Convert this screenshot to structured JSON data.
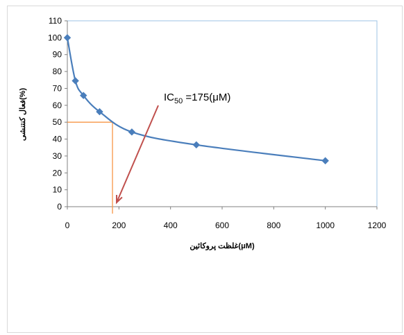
{
  "chart_data": {
    "type": "scatter",
    "title": "",
    "xlabel": "غلظت پروکائین(μM)",
    "ylabel": "فعال کنتنشی(%)",
    "xlim": [
      0,
      1200
    ],
    "ylim": [
      0,
      110
    ],
    "x_ticks": [
      "0",
      "200",
      "400",
      "600",
      "800",
      "1000",
      "1200"
    ],
    "y_ticks": [
      "0",
      "10",
      "20",
      "30",
      "40",
      "50",
      "60",
      "70",
      "80",
      "90",
      "100",
      "110"
    ],
    "grid": false,
    "series": [
      {
        "x": [
          0,
          31.25,
          62.5,
          125,
          250,
          500,
          1000
        ],
        "y": [
          100,
          74.5,
          65.8,
          56.2,
          44.2,
          36.6,
          27.2
        ],
        "color": "#4a7ebb"
      }
    ],
    "annotation": {
      "ic_label": "IC",
      "ic_sub": "50",
      "ic_value": " =175(μM)",
      "ic50_x": 175,
      "ic50_y": 50,
      "line_color": "#f79646",
      "arrow_color": "#c0504d"
    }
  }
}
